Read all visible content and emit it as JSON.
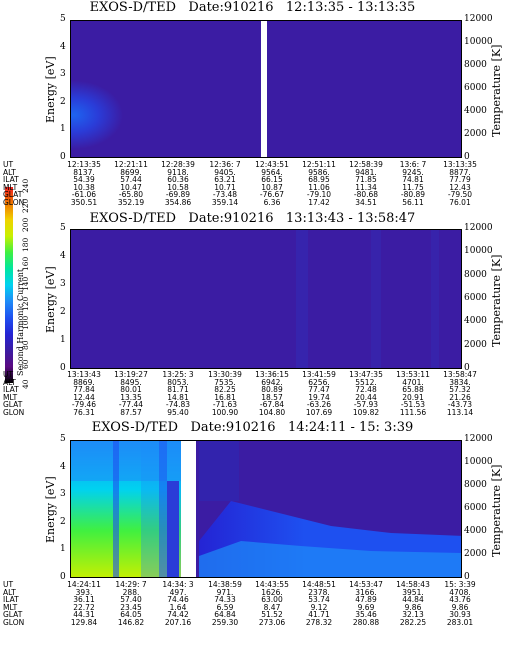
{
  "panels": [
    {
      "title": "EXOS-D/TED   Date:910216   12:13:35 - 13:13:35",
      "ylabel": "Energy [eV]",
      "y2label": "Temperature [K]",
      "yticks": [
        "0",
        "1",
        "2",
        "3",
        "4",
        "5"
      ],
      "y2ticks": [
        "0",
        "2000",
        "4000",
        "6000",
        "8000",
        "10000",
        "12000"
      ],
      "table": {
        "labels": [
          "UT",
          "ALT",
          "ILAT",
          "MLT",
          "GLAT",
          "GLON"
        ],
        "columns": [
          [
            "12:13:35",
            "8137.",
            "54.39",
            "10.38",
            "-61.06",
            "350.51"
          ],
          [
            "12:21:11",
            "8699.",
            "57.44",
            "10.47",
            "-65.80",
            "352.19"
          ],
          [
            "12:28:39",
            "9118.",
            "60.36",
            "10.58",
            "-69.89",
            "354.86"
          ],
          [
            "12:36: 7",
            "9405.",
            "63.21",
            "10.71",
            "-73.48",
            "359.14"
          ],
          [
            "12:43:51",
            "9564.",
            "66.15",
            "10.87",
            "-76.67",
            "6.36"
          ],
          [
            "12:51:11",
            "9586.",
            "68.95",
            "11.06",
            "-79.10",
            "17.42"
          ],
          [
            "12:58:39",
            "9481.",
            "71.85",
            "11.34",
            "-80.68",
            "34.51"
          ],
          [
            "13:6: 7",
            "9245.",
            "74.81",
            "11.75",
            "-80.89",
            "56.11"
          ],
          [
            "13:13:35",
            "8877.",
            "77.79",
            "12.43",
            "-79.50",
            "76.01"
          ]
        ]
      }
    },
    {
      "title": "EXOS-D/TED   Date:910216   13:13:43 - 13:58:47",
      "ylabel": "Energy [eV]",
      "y2label": "Temperature [K]",
      "yticks": [
        "0",
        "1",
        "2",
        "3",
        "4",
        "5"
      ],
      "y2ticks": [
        "0",
        "2000",
        "4000",
        "6000",
        "8000",
        "10000",
        "12000"
      ],
      "table": {
        "labels": [
          "UT",
          "ALT",
          "ILAT",
          "MLT",
          "GLAT",
          "GLON"
        ],
        "columns": [
          [
            "13:13:43",
            "8869.",
            "77.84",
            "12.44",
            "-79.46",
            "76.31"
          ],
          [
            "13:19:27",
            "8495.",
            "80.01",
            "13.35",
            "-77.44",
            "87.57"
          ],
          [
            "13:25: 3",
            "8053.",
            "81.71",
            "14.81",
            "-74.83",
            "95.40"
          ],
          [
            "13:30:39",
            "7535.",
            "82.25",
            "16.81",
            "-71.63",
            "100.90"
          ],
          [
            "13:36:15",
            "6942.",
            "80.89",
            "18.57",
            "-67.84",
            "104.80"
          ],
          [
            "13:41:59",
            "6256.",
            "77.47",
            "19.74",
            "-63.26",
            "107.69"
          ],
          [
            "13:47:35",
            "5512.",
            "72.48",
            "20.44",
            "-57.93",
            "109.82"
          ],
          [
            "13:53:11",
            "4701.",
            "65.88",
            "20.91",
            "-51.53",
            "111.56"
          ],
          [
            "13:58:47",
            "3834.",
            "57.32",
            "21.26",
            "-43.73",
            "113.14"
          ]
        ]
      }
    },
    {
      "title": "EXOS-D/TED   Date:910216   14:24:11 - 15: 3:39",
      "ylabel": "Energy [eV]",
      "y2label": "Temperature [K]",
      "yticks": [
        "0",
        "1",
        "2",
        "3",
        "4",
        "5"
      ],
      "y2ticks": [
        "0",
        "2000",
        "4000",
        "6000",
        "8000",
        "10000",
        "12000"
      ],
      "table": {
        "labels": [
          "UT",
          "ALT",
          "ILAT",
          "MLT",
          "GLAT",
          "GLON"
        ],
        "columns": [
          [
            "14:24:11",
            "393.",
            "36.11",
            "22.72",
            "44.31",
            "129.84"
          ],
          [
            "14:29: 7",
            "288.",
            "57.40",
            "23.45",
            "64.05",
            "146.82"
          ],
          [
            "14:34: 3",
            "497.",
            "74.46",
            "1.64",
            "74.42",
            "207.16"
          ],
          [
            "14:38:59",
            "971.",
            "74.33",
            "6.59",
            "64.84",
            "259.30"
          ],
          [
            "14:43:55",
            "1626.",
            "63.00",
            "8.47",
            "51.52",
            "273.06"
          ],
          [
            "14:48:51",
            "2378.",
            "53.74",
            "9.12",
            "41.71",
            "278.32"
          ],
          [
            "14:53:47",
            "3166.",
            "47.89",
            "9.69",
            "35.46",
            "280.88"
          ],
          [
            "14:58:43",
            "3951.",
            "44.84",
            "9.86",
            "32.13",
            "282.25"
          ],
          [
            "15: 3:39",
            "4708.",
            "43.76",
            "9.86",
            "30.93",
            "283.01"
          ]
        ]
      }
    }
  ],
  "colorbar": {
    "label": "Second Harmonic Current",
    "ticks": [
      "40",
      "60",
      "80",
      "100",
      "120",
      "140",
      "160",
      "180",
      "200",
      "220",
      "240"
    ],
    "colors": [
      "#000000",
      "#5a0a82",
      "#3b1ca3",
      "#2424d4",
      "#1e50f0",
      "#1e8cf8",
      "#00d2f0",
      "#00e6a0",
      "#40f040",
      "#c8f000",
      "#f0d200",
      "#f07800",
      "#f01e1e"
    ]
  },
  "chart_data": [
    {
      "type": "heatmap",
      "title": "EXOS-D/TED   Date:910216   12:13:35 - 13:13:35",
      "xlabel": "UT",
      "ylabel": "Energy [eV]",
      "y2label": "Temperature [K]",
      "ylim": [
        0,
        5
      ],
      "y2lim": [
        0,
        12000
      ],
      "x": [
        "12:13:35",
        "12:21:11",
        "12:28:39",
        "12:36: 7",
        "12:43:51",
        "12:51:11",
        "12:58:39",
        "13:6: 7",
        "13:13:35"
      ],
      "data_gap": "12:43:51",
      "colorbar": "Second Harmonic Current",
      "clim": [
        40,
        240
      ]
    },
    {
      "type": "heatmap",
      "title": "EXOS-D/TED   Date:910216   13:13:43 - 13:58:47",
      "xlabel": "UT",
      "ylabel": "Energy [eV]",
      "y2label": "Temperature [K]",
      "ylim": [
        0,
        5
      ],
      "y2lim": [
        0,
        12000
      ],
      "x": [
        "13:13:43",
        "13:19:27",
        "13:25: 3",
        "13:30:39",
        "13:36:15",
        "13:41:59",
        "13:47:35",
        "13:53:11",
        "13:58:47"
      ],
      "colorbar": "Second Harmonic Current",
      "clim": [
        40,
        240
      ]
    },
    {
      "type": "heatmap",
      "title": "EXOS-D/TED   Date:910216   14:24:11 - 15: 3:39",
      "xlabel": "UT",
      "ylabel": "Energy [eV]",
      "y2label": "Temperature [K]",
      "ylim": [
        0,
        5
      ],
      "y2lim": [
        0,
        12000
      ],
      "x": [
        "14:24:11",
        "14:29: 7",
        "14:34: 3",
        "14:38:59",
        "14:43:55",
        "14:48:51",
        "14:53:47",
        "14:58:43",
        "15: 3:39"
      ],
      "data_gap": "14:34: 3",
      "colorbar": "Second Harmonic Current",
      "clim": [
        40,
        240
      ]
    }
  ]
}
